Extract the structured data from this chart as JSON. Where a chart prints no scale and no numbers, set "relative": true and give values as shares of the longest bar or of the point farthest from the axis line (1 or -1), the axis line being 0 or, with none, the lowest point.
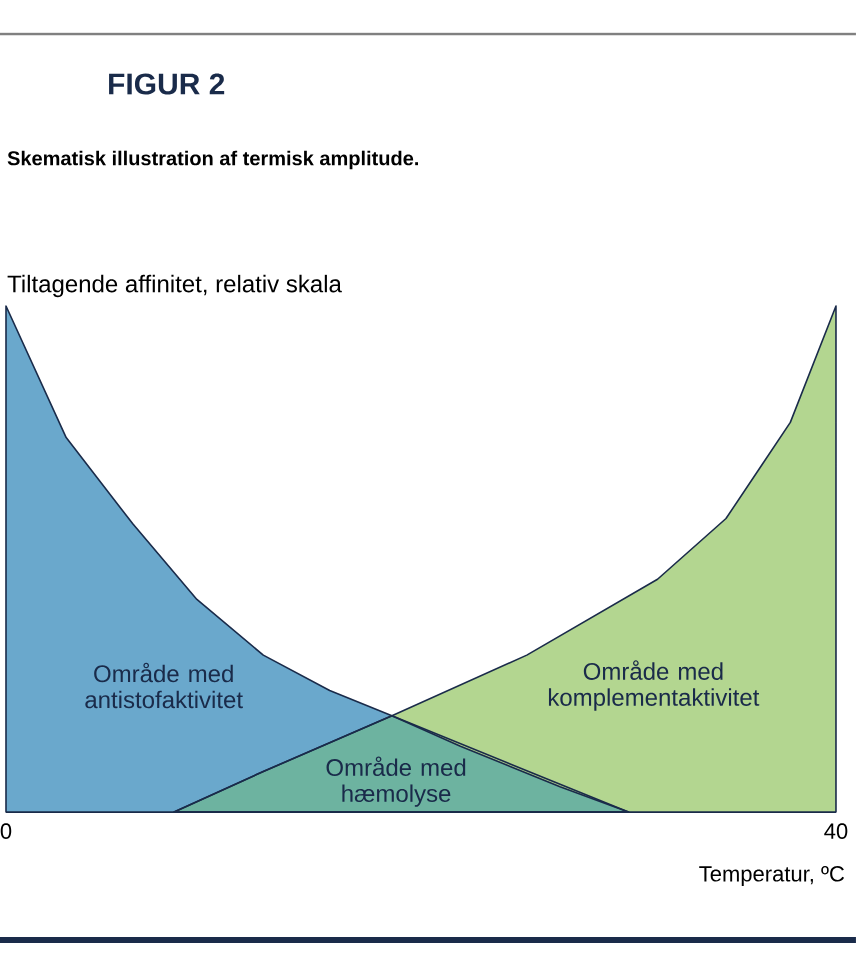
{
  "chart_data": {
    "type": "area",
    "title": "FIGUR 2",
    "subtitle": "Skematisk illustration af termisk amplitude.",
    "ylabel": "Tiltagende affinitet, relativ skala",
    "xlabel": "Temperatur, ºC",
    "relative": true,
    "xlim": [
      0,
      40
    ],
    "xticks": [
      0,
      40
    ],
    "series": [
      {
        "color": "#6aa8cc",
        "x": [
          0,
          2.9,
          6.1,
          9.2,
          12.4,
          15.6,
          18.6,
          21.9,
          26.7,
          30
        ],
        "values": [
          1,
          0.74,
          0.57,
          0.42,
          0.31,
          0.24,
          0.19,
          null,
          null,
          0
        ]
      },
      {
        "color": "#b3d690",
        "x": [
          8.1,
          12.4,
          18.6,
          25.1,
          31.4,
          34.7,
          37.8,
          40
        ],
        "values": [
          0,
          0.08,
          0.19,
          0.31,
          0.46,
          0.58,
          0.77,
          1
        ]
      },
      {
        "color": "#6db3a0",
        "x": [
          8.1,
          12.4,
          18.6,
          21.9,
          26.7,
          30
        ],
        "values": [
          0,
          0.08,
          0.19,
          0.13,
          0.05,
          0
        ]
      }
    ],
    "annotations": [
      "Område med antistofaktivitet",
      "Område med komplementaktivitet",
      "Område med hæmolyse"
    ]
  }
}
